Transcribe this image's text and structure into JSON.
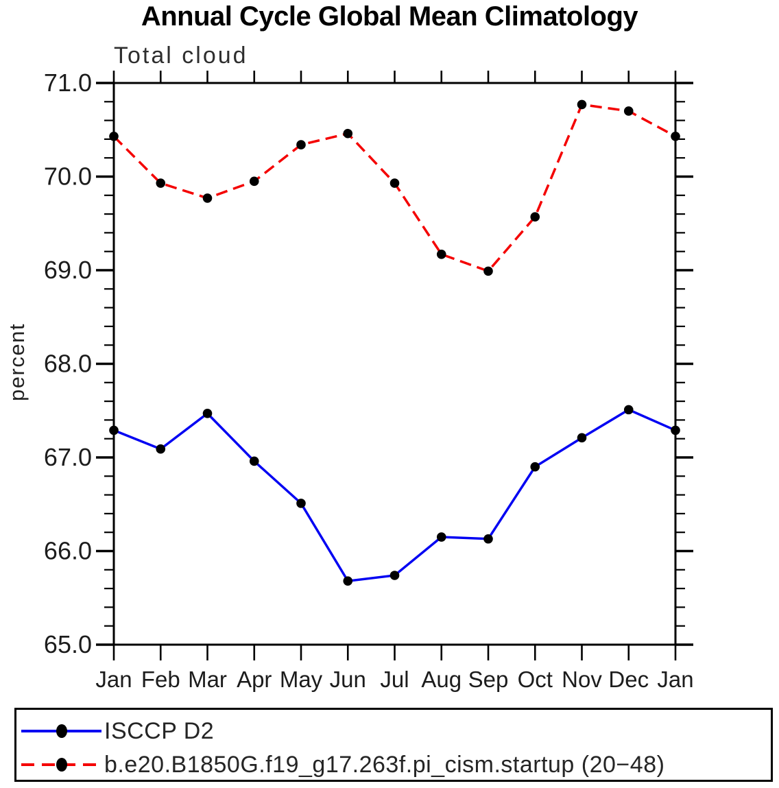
{
  "figure": {
    "title": "Annual Cycle Global Mean Climatology",
    "subtitle": "Total cloud",
    "ylabel": "percent"
  },
  "chart_data": {
    "type": "line",
    "title": "Annual Cycle Global Mean Climatology",
    "subtitle": "Total cloud",
    "xlabel": "",
    "ylabel": "percent",
    "x_categories": [
      "Jan",
      "Feb",
      "Mar",
      "Apr",
      "May",
      "Jun",
      "Jul",
      "Aug",
      "Sep",
      "Oct",
      "Nov",
      "Dec",
      "Jan"
    ],
    "ylim": [
      65.0,
      71.0
    ],
    "ytick_values": [
      65,
      66,
      67,
      68,
      69,
      70,
      71
    ],
    "ytick_labels": [
      "65.0",
      "66.0",
      "67.0",
      "68.0",
      "69.0",
      "70.0",
      "71.0"
    ],
    "minor_tick_step": 0.2,
    "grid": false,
    "legend_position": "bottom-box",
    "series": [
      {
        "name": "ISCCP D2",
        "style": "solid",
        "color": "#0202f2",
        "marker": "circle",
        "marker_color": "#000000",
        "values": [
          67.29,
          67.09,
          67.47,
          66.96,
          66.51,
          65.68,
          65.74,
          66.15,
          66.13,
          66.9,
          67.21,
          67.51,
          67.29
        ]
      },
      {
        "name": "b.e20.B1850G.f19_g17.263f.pi_cism.startup (20−48)",
        "style": "dashed",
        "color": "#f40000",
        "marker": "circle",
        "marker_color": "#000000",
        "values": [
          70.43,
          69.93,
          69.77,
          69.95,
          70.34,
          70.46,
          69.93,
          69.17,
          68.99,
          69.57,
          70.77,
          70.7,
          70.43
        ]
      }
    ]
  }
}
